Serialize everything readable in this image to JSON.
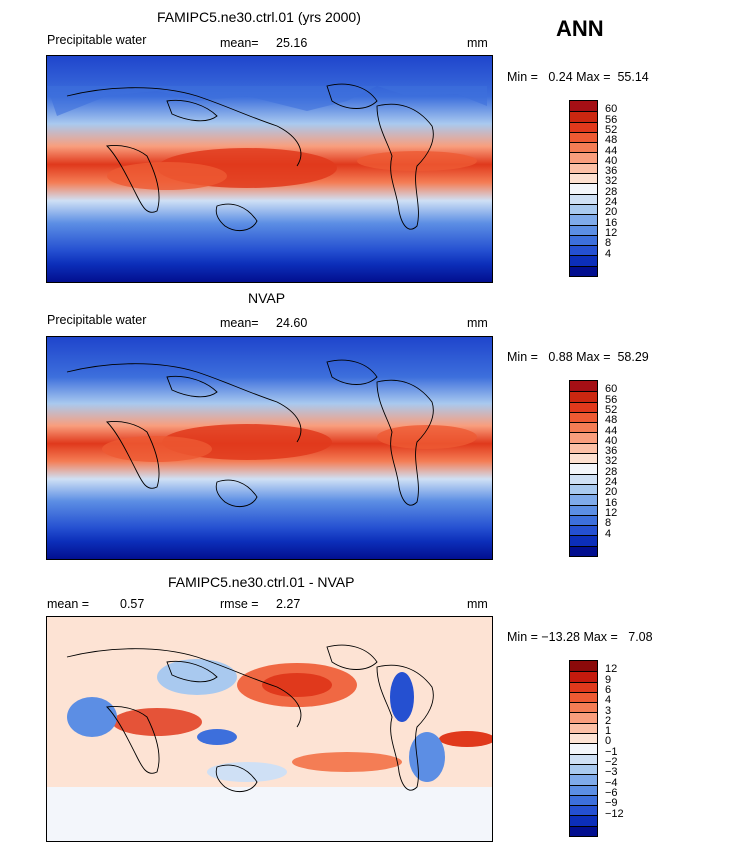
{
  "season": "ANN",
  "panels": [
    {
      "title": "FAMIPC5.ne30.ctrl.01 (yrs 2000)",
      "left_label": "Precipitable water",
      "mid_label": "mean=",
      "mid_value": "25.16",
      "units": "mm",
      "minmax": "Min =   0.24 Max =  55.14",
      "kind": "field"
    },
    {
      "title": "NVAP",
      "left_label": "Precipitable water",
      "mid_label": "mean=",
      "mid_value": "24.60",
      "units": "mm",
      "minmax": "Min =   0.88 Max =  58.29",
      "kind": "field"
    },
    {
      "title": "FAMIPC5.ne30.ctrl.01 - NVAP",
      "left_label": "mean =",
      "left_value": "0.57",
      "mid_label": "rmse =",
      "mid_value": "2.27",
      "units": "mm",
      "minmax": "Min = −13.28 Max =   7.08",
      "kind": "diff"
    }
  ],
  "colorbar_field": {
    "labels": [
      "60",
      "56",
      "52",
      "48",
      "44",
      "40",
      "36",
      "32",
      "28",
      "24",
      "20",
      "16",
      "12",
      "8",
      "4"
    ],
    "colors": [
      "#a50f15",
      "#cb2710",
      "#e0391c",
      "#ee5a33",
      "#f47d55",
      "#f99e7d",
      "#fcc0a6",
      "#fde0d0",
      "#f3f6fb",
      "#cfe0f5",
      "#a9c9ef",
      "#7faaea",
      "#5c8ee4",
      "#3d6fdc",
      "#2550d1",
      "#0c2fba",
      "#020f8f"
    ]
  },
  "colorbar_diff": {
    "labels": [
      "12",
      "9",
      "6",
      "4",
      "3",
      "2",
      "1",
      "0",
      "−1",
      "−2",
      "−3",
      "−4",
      "−6",
      "−9",
      "−12"
    ],
    "colors": [
      "#8b0a0a",
      "#c41a0d",
      "#e0391c",
      "#ee5a33",
      "#f47d55",
      "#f99e7d",
      "#fcc0a6",
      "#fde3d4",
      "#f3f6fb",
      "#cfe0f5",
      "#a9c9ef",
      "#7faaea",
      "#5c8ee4",
      "#3d6fdc",
      "#2550d1",
      "#0c2fba",
      "#020f8f"
    ]
  }
}
